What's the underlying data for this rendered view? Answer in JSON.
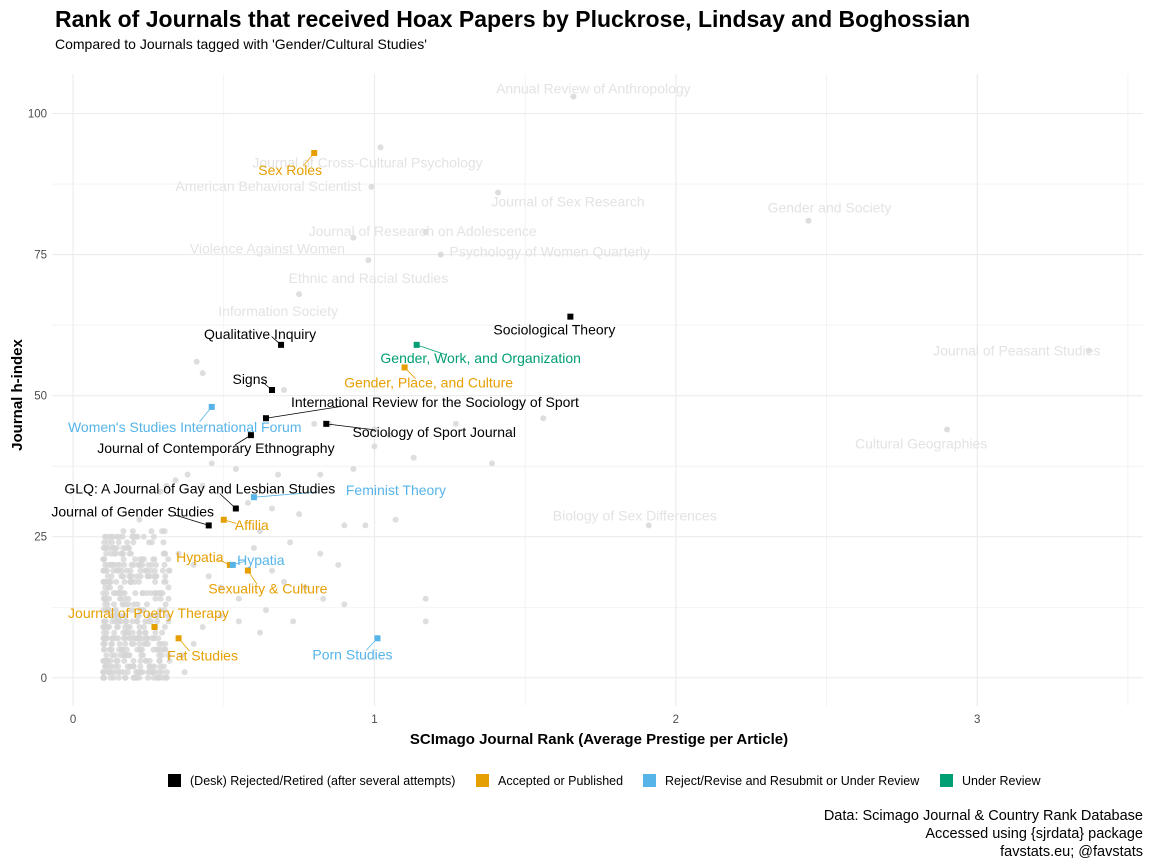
{
  "colors": {
    "background_point": "#d6d6d6",
    "background_label": "#e3e3e3",
    "rejected": "#000000",
    "accepted": "#E69F00",
    "revise": "#56B4E9",
    "review": "#009E73",
    "grid": "#ebebeb"
  },
  "chart_data": {
    "type": "scatter",
    "title": "Rank of Journals that received Hoax Papers by Pluckrose, Lindsay and Boghossian",
    "subtitle": "Compared to Journals tagged with 'Gender/Cultural Studies'",
    "xlabel": "SCImago Journal Rank (Average Prestige per Article)",
    "ylabel": "Journal h-index",
    "xlim": [
      -0.07,
      3.55
    ],
    "ylim": [
      -5,
      107
    ],
    "x_ticks": [
      0,
      1,
      2,
      3
    ],
    "x_tick_labels": [
      "0",
      "1",
      "2",
      "3"
    ],
    "y_ticks": [
      0,
      25,
      50,
      75,
      100
    ],
    "y_tick_labels": [
      "0",
      "25",
      "50",
      "75",
      "100"
    ],
    "grid": true,
    "legend_position": "bottom",
    "legend": [
      {
        "key": "rejected",
        "label": "(Desk) Rejected/Retired (after several attempts)"
      },
      {
        "key": "accepted",
        "label": "Accepted or Published"
      },
      {
        "key": "revise",
        "label": "Reject/Revise and Resubmit or Under Review"
      },
      {
        "key": "review",
        "label": "Under Review"
      }
    ],
    "background_labeled": [
      {
        "name": "Annual Review of Anthropology",
        "x": 1.66,
        "y": 103
      },
      {
        "name": "Journal of Cross-Cultural Psychology",
        "x": 1.02,
        "y": 94
      },
      {
        "name": "American Behavioral Scientist",
        "x": 0.99,
        "y": 87
      },
      {
        "name": "Journal of Sex Research",
        "x": 1.41,
        "y": 86
      },
      {
        "name": "Gender and Society",
        "x": 2.44,
        "y": 81
      },
      {
        "name": "Journal of Research on Adolescence",
        "x": 1.17,
        "y": 79
      },
      {
        "name": "Violence Against Women",
        "x": 0.93,
        "y": 78
      },
      {
        "name": "Psychology of Women Quarterly",
        "x": 1.22,
        "y": 75
      },
      {
        "name": "Ethnic and Racial Studies",
        "x": 0.98,
        "y": 74
      },
      {
        "name": "Information Society",
        "x": 0.75,
        "y": 68
      },
      {
        "name": "Journal of Peasant Studies",
        "x": 3.37,
        "y": 58
      },
      {
        "name": "Cultural Geographies",
        "x": 2.9,
        "y": 44
      },
      {
        "name": "Biology of Sex Differences",
        "x": 1.91,
        "y": 27
      }
    ],
    "highlighted": [
      {
        "name": "Sex Roles",
        "x": 0.8,
        "y": 93,
        "status": "accepted"
      },
      {
        "name": "Qualitative Inquiry",
        "x": 0.69,
        "y": 59,
        "status": "rejected"
      },
      {
        "name": "Sociological Theory",
        "x": 1.65,
        "y": 64,
        "status": "rejected"
      },
      {
        "name": "Gender, Work, and Organization",
        "x": 1.14,
        "y": 59,
        "status": "review"
      },
      {
        "name": "Gender, Place, and Culture",
        "x": 1.1,
        "y": 55,
        "status": "accepted"
      },
      {
        "name": "Signs",
        "x": 0.66,
        "y": 51,
        "status": "rejected"
      },
      {
        "name": "International Review for the Sociology of Sport",
        "x": 0.64,
        "y": 46,
        "status": "rejected"
      },
      {
        "name": "Women's Studies International Forum",
        "x": 0.46,
        "y": 48,
        "status": "revise"
      },
      {
        "name": "Sociology of Sport Journal",
        "x": 0.84,
        "y": 45,
        "status": "rejected"
      },
      {
        "name": "Journal of Contemporary Ethnography",
        "x": 0.59,
        "y": 43,
        "status": "rejected"
      },
      {
        "name": "GLQ: A Journal of Gay and Lesbian Studies",
        "x": 0.54,
        "y": 30,
        "status": "rejected"
      },
      {
        "name": "Feminist Theory",
        "x": 0.6,
        "y": 32,
        "status": "revise"
      },
      {
        "name": "Journal of Gender Studies",
        "x": 0.45,
        "y": 27,
        "status": "rejected"
      },
      {
        "name": "Affilia",
        "x": 0.5,
        "y": 28,
        "status": "accepted"
      },
      {
        "name": "Hypatia",
        "x": 0.52,
        "y": 20,
        "status": "accepted"
      },
      {
        "name": "Hypatia",
        "x": 0.53,
        "y": 20,
        "status": "revise"
      },
      {
        "name": "Sexuality & Culture",
        "x": 0.58,
        "y": 19,
        "status": "accepted"
      },
      {
        "name": "Journal of Poetry Therapy",
        "x": 0.27,
        "y": 9,
        "status": "accepted"
      },
      {
        "name": "Fat Studies",
        "x": 0.35,
        "y": 7,
        "status": "accepted"
      },
      {
        "name": "Porn Studies",
        "x": 1.01,
        "y": 7,
        "status": "revise"
      }
    ],
    "background_points": [
      [
        0.41,
        56
      ],
      [
        0.43,
        54
      ],
      [
        0.7,
        51
      ],
      [
        0.8,
        45
      ],
      [
        0.85,
        45
      ],
      [
        1.0,
        44
      ],
      [
        1.05,
        43
      ],
      [
        1.27,
        45
      ],
      [
        1.56,
        46
      ],
      [
        1.39,
        38
      ],
      [
        1.13,
        39
      ],
      [
        0.93,
        37
      ],
      [
        0.75,
        40
      ],
      [
        1.0,
        41
      ],
      [
        0.82,
        36
      ],
      [
        0.68,
        36
      ],
      [
        0.54,
        37
      ],
      [
        0.46,
        38
      ],
      [
        0.38,
        36
      ],
      [
        0.34,
        35
      ],
      [
        0.31,
        34
      ],
      [
        0.29,
        33
      ],
      [
        0.43,
        34
      ],
      [
        0.58,
        31
      ],
      [
        0.66,
        30
      ],
      [
        0.75,
        29
      ],
      [
        0.9,
        27
      ],
      [
        0.97,
        27
      ],
      [
        1.07,
        28
      ],
      [
        0.72,
        24
      ],
      [
        0.62,
        26
      ],
      [
        0.82,
        22
      ],
      [
        0.88,
        20
      ],
      [
        0.6,
        23
      ],
      [
        0.66,
        19
      ],
      [
        0.7,
        17
      ],
      [
        0.77,
        16
      ],
      [
        0.83,
        14
      ],
      [
        0.9,
        13
      ],
      [
        1.17,
        14
      ],
      [
        1.17,
        10
      ],
      [
        0.73,
        10
      ],
      [
        0.64,
        12
      ],
      [
        0.55,
        14
      ],
      [
        0.49,
        16
      ],
      [
        0.45,
        18
      ],
      [
        0.4,
        20
      ],
      [
        0.35,
        22
      ],
      [
        0.3,
        24
      ],
      [
        0.26,
        26
      ],
      [
        0.22,
        28
      ],
      [
        0.2,
        25
      ],
      [
        0.62,
        8
      ],
      [
        0.55,
        10
      ],
      [
        0.49,
        11
      ],
      [
        0.43,
        9
      ],
      [
        0.4,
        6
      ],
      [
        0.36,
        4
      ],
      [
        0.32,
        3
      ],
      [
        0.29,
        5
      ],
      [
        0.27,
        2
      ],
      [
        0.37,
        1
      ]
    ]
  }
}
